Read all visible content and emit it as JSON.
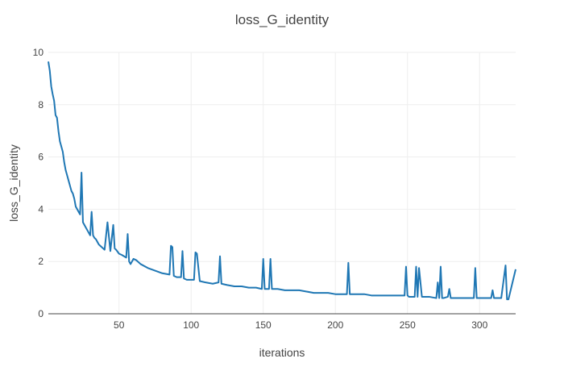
{
  "chart_data": {
    "type": "line",
    "title": "loss_G_identity",
    "xlabel": "iterations",
    "ylabel": "loss_G_identity",
    "xlim": [
      1,
      325
    ],
    "ylim": [
      0,
      10
    ],
    "x_ticks": [
      50,
      100,
      150,
      200,
      250,
      300
    ],
    "y_ticks": [
      0,
      2,
      4,
      6,
      8,
      10
    ],
    "grid": true,
    "line_color": "#1f77b4",
    "series": [
      {
        "x": [
          1,
          2,
          3,
          4,
          5,
          6,
          7,
          8,
          9,
          10,
          11,
          12,
          13,
          14,
          15,
          16,
          17,
          18,
          19,
          20,
          21,
          22,
          23,
          24,
          25,
          26,
          27,
          28,
          29,
          30,
          31,
          32,
          33,
          34,
          35,
          36,
          37,
          38,
          39,
          40,
          42,
          44,
          46,
          47,
          48,
          50,
          52,
          55,
          56,
          57,
          58,
          60,
          62,
          65,
          70,
          75,
          80,
          85,
          86,
          87,
          88,
          90,
          93,
          94,
          95,
          97,
          100,
          102,
          103,
          104,
          106,
          110,
          115,
          119,
          120,
          121,
          125,
          130,
          135,
          140,
          145,
          149,
          150,
          151,
          154,
          155,
          156,
          160,
          165,
          170,
          175,
          180,
          185,
          190,
          195,
          200,
          205,
          208,
          209,
          210,
          215,
          220,
          225,
          230,
          235,
          240,
          245,
          248,
          249,
          250,
          251,
          255,
          256,
          257,
          258,
          260,
          265,
          270,
          271,
          272,
          273,
          274,
          275,
          278,
          279,
          280,
          285,
          290,
          295,
          296,
          297,
          298,
          300,
          305,
          308,
          309,
          310,
          315,
          318,
          319,
          320,
          325
        ],
        "y": [
          9.65,
          9.3,
          8.7,
          8.4,
          8.15,
          7.6,
          7.5,
          7.0,
          6.6,
          6.4,
          6.2,
          5.8,
          5.5,
          5.3,
          5.1,
          4.9,
          4.7,
          4.6,
          4.4,
          4.1,
          4.0,
          3.9,
          3.8,
          5.4,
          3.5,
          3.4,
          3.3,
          3.2,
          3.1,
          3.0,
          3.9,
          3.0,
          2.9,
          2.85,
          2.75,
          2.65,
          2.6,
          2.55,
          2.5,
          2.45,
          3.5,
          2.4,
          3.4,
          2.5,
          2.45,
          2.3,
          2.25,
          2.15,
          3.05,
          2.0,
          1.9,
          2.1,
          2.05,
          1.9,
          1.75,
          1.65,
          1.55,
          1.5,
          2.6,
          2.55,
          1.45,
          1.4,
          1.4,
          2.4,
          1.35,
          1.3,
          1.3,
          1.3,
          2.35,
          2.3,
          1.25,
          1.2,
          1.15,
          1.2,
          2.2,
          1.15,
          1.1,
          1.05,
          1.05,
          1.0,
          1.0,
          0.95,
          2.1,
          0.95,
          0.95,
          2.1,
          0.95,
          0.95,
          0.9,
          0.9,
          0.9,
          0.85,
          0.8,
          0.8,
          0.8,
          0.75,
          0.75,
          0.75,
          1.95,
          0.75,
          0.75,
          0.75,
          0.7,
          0.7,
          0.7,
          0.7,
          0.7,
          0.7,
          1.8,
          0.7,
          0.65,
          0.65,
          1.8,
          0.65,
          1.75,
          0.65,
          0.65,
          0.6,
          1.2,
          0.6,
          1.8,
          0.6,
          0.6,
          0.65,
          0.95,
          0.6,
          0.6,
          0.6,
          0.6,
          0.6,
          1.75,
          0.6,
          0.6,
          0.6,
          0.6,
          0.9,
          0.6,
          0.6,
          1.85,
          0.55,
          0.55,
          1.7
        ]
      }
    ]
  }
}
